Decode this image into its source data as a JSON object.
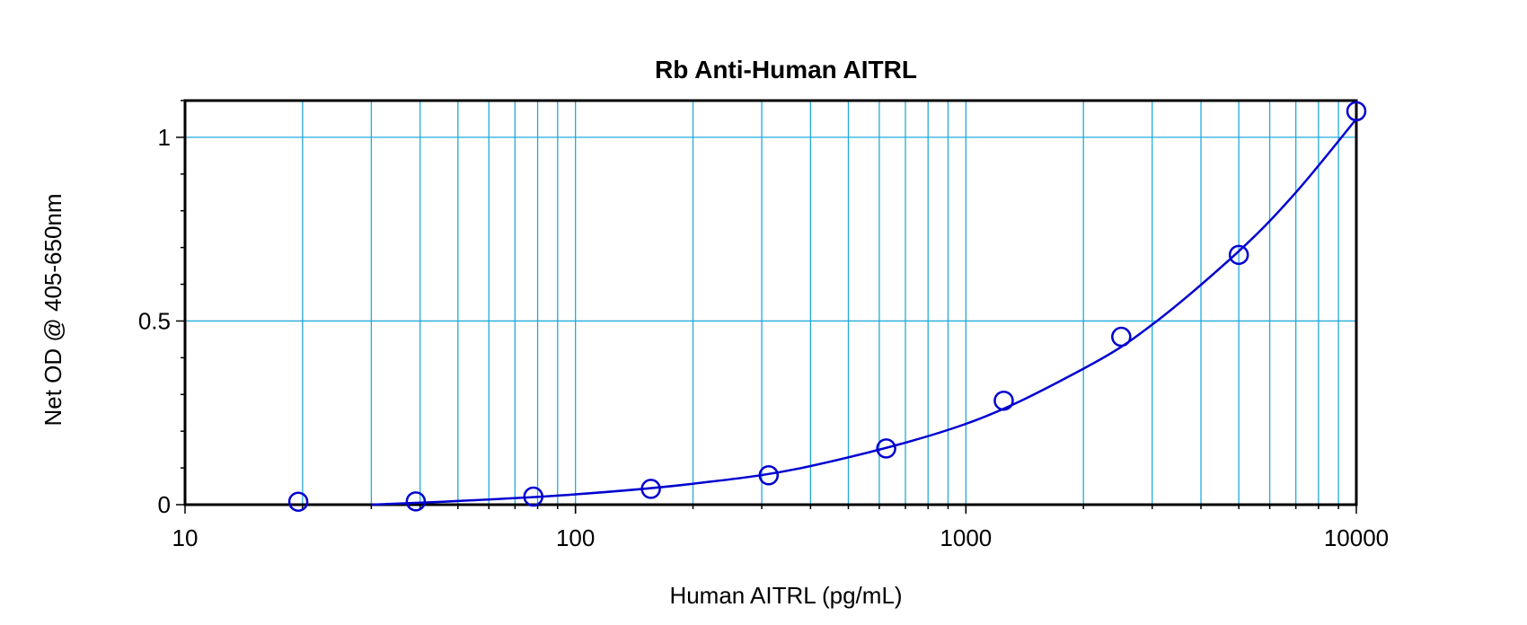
{
  "chart_data": {
    "type": "scatter",
    "title": "Rb Anti-Human AITRL",
    "xlabel": "Human AITRL (pg/mL)",
    "ylabel": "Net OD @ 405-650nm",
    "x_scale": "log",
    "xlim": [
      10,
      10000
    ],
    "ylim": [
      0,
      1.1
    ],
    "x_ticks": [
      10,
      100,
      1000,
      10000
    ],
    "x_tick_labels": [
      "10",
      "100",
      "1000",
      "10000"
    ],
    "y_ticks": [
      0,
      0.5,
      1
    ],
    "y_tick_labels": [
      "0",
      "0.5",
      "1"
    ],
    "grid": true,
    "points": [
      {
        "x": 19.5,
        "y": 0.008
      },
      {
        "x": 39,
        "y": 0.009
      },
      {
        "x": 78,
        "y": 0.022
      },
      {
        "x": 156,
        "y": 0.043
      },
      {
        "x": 312.5,
        "y": 0.08
      },
      {
        "x": 625,
        "y": 0.153
      },
      {
        "x": 1250,
        "y": 0.283
      },
      {
        "x": 2500,
        "y": 0.457
      },
      {
        "x": 5000,
        "y": 0.68
      },
      {
        "x": 10000,
        "y": 1.071
      }
    ],
    "fit_curve": [
      {
        "x": 30,
        "y": 0
      },
      {
        "x": 50,
        "y": 0.01
      },
      {
        "x": 100,
        "y": 0.028
      },
      {
        "x": 200,
        "y": 0.057
      },
      {
        "x": 400,
        "y": 0.105
      },
      {
        "x": 1000,
        "y": 0.22
      },
      {
        "x": 2000,
        "y": 0.37
      },
      {
        "x": 3000,
        "y": 0.49
      },
      {
        "x": 5000,
        "y": 0.69
      },
      {
        "x": 7000,
        "y": 0.85
      },
      {
        "x": 10000,
        "y": 1.05
      }
    ],
    "colors": {
      "series": "#0000d0",
      "grid": "#22aadd",
      "axis": "#000000"
    }
  }
}
